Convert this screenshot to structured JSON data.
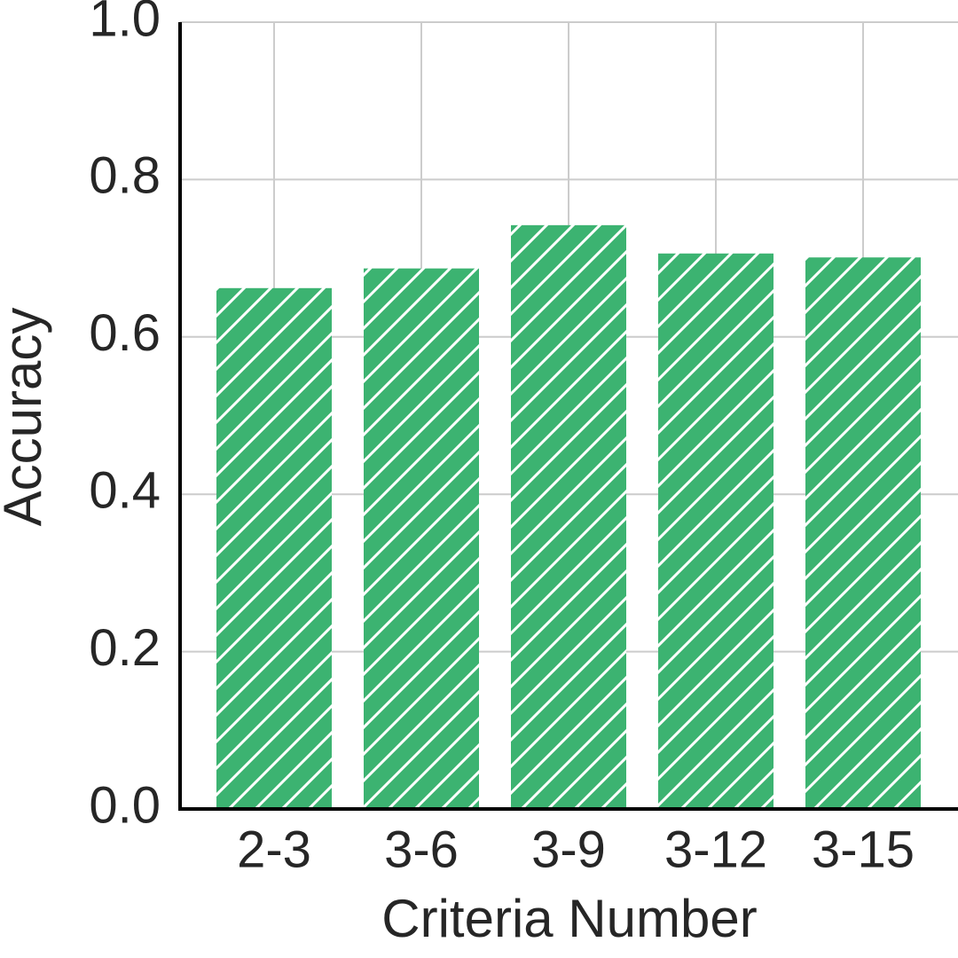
{
  "chart_data": {
    "type": "bar",
    "x_label": "Criteria Number",
    "y_label": "Accuracy",
    "categories": [
      "2-3",
      "3-6",
      "3-9",
      "3-12",
      "3-15"
    ],
    "values": [
      0.662,
      0.687,
      0.742,
      0.706,
      0.701
    ],
    "color": "#3cb371",
    "hatch": "/",
    "ylim": [
      0,
      1.0
    ],
    "yticks": [
      {
        "value": 0,
        "label": "0.0"
      },
      0.2,
      0.4,
      0.6,
      0.8,
      {
        "value": 1.0,
        "label": "1.0"
      }
    ],
    "grid": true
  }
}
